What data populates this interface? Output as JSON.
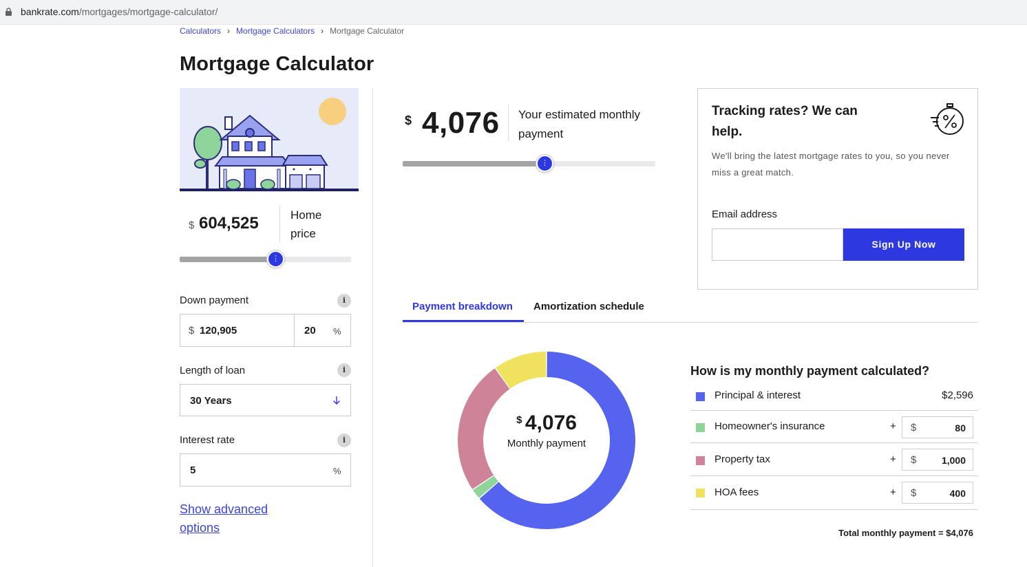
{
  "browser": {
    "url_host": "bankrate.com",
    "url_path": "/mortgages/mortgage-calculator/"
  },
  "breadcrumb": [
    {
      "label": "Calculators"
    },
    {
      "label": "Mortgage Calculators"
    },
    {
      "label": "Mortgage Calculator"
    }
  ],
  "breadcrumb_separator": "›",
  "page_title": "Mortgage Calculator",
  "home_price": {
    "currency": "$",
    "value": "604,525",
    "label": "Home price",
    "slider_fraction": 0.56
  },
  "down_payment": {
    "label": "Down payment",
    "currency": "$",
    "amount": "120,905",
    "percent": "20",
    "percent_symbol": "%"
  },
  "loan_length": {
    "label": "Length of loan",
    "value": "30 Years"
  },
  "interest_rate": {
    "label": "Interest rate",
    "value": "5",
    "percent_symbol": "%"
  },
  "info_glyph": "i",
  "advanced_link": "Show advanced options",
  "monthly_payment": {
    "currency": "$",
    "value": "4,076",
    "label": "Your estimated monthly payment",
    "slider_fraction": 0.56
  },
  "tracking_card": {
    "title": "Tracking rates? We can help.",
    "description": "We'll bring the latest mortgage rates to you, so you never miss a great match.",
    "email_label": "Email address",
    "email_value": "",
    "button_label": "Sign Up Now"
  },
  "tabs": [
    {
      "label": "Payment breakdown",
      "active": true
    },
    {
      "label": "Amortization schedule",
      "active": false
    }
  ],
  "donut": {
    "currency": "$",
    "value": "4,076",
    "label": "Monthly payment"
  },
  "breakdown": {
    "title": "How is my monthly payment calculated?",
    "plus": "+",
    "currency": "$",
    "rows": [
      {
        "name": "Principal & interest",
        "value": "$2,596",
        "amount": 2596,
        "color": "#5563ef",
        "editable": false
      },
      {
        "name": "Homeowner's insurance",
        "value": "80",
        "amount": 80,
        "color": "#8fd49b",
        "editable": true
      },
      {
        "name": "Property tax",
        "value": "1,000",
        "amount": 1000,
        "color": "#cf8398",
        "editable": true
      },
      {
        "name": "HOA fees",
        "value": "400",
        "amount": 400,
        "color": "#f0e25e",
        "editable": true
      }
    ],
    "total": "Total monthly payment = $4,076"
  },
  "colors": {
    "brand_blue": "#2e38e0",
    "link_blue": "#3c44d4"
  }
}
